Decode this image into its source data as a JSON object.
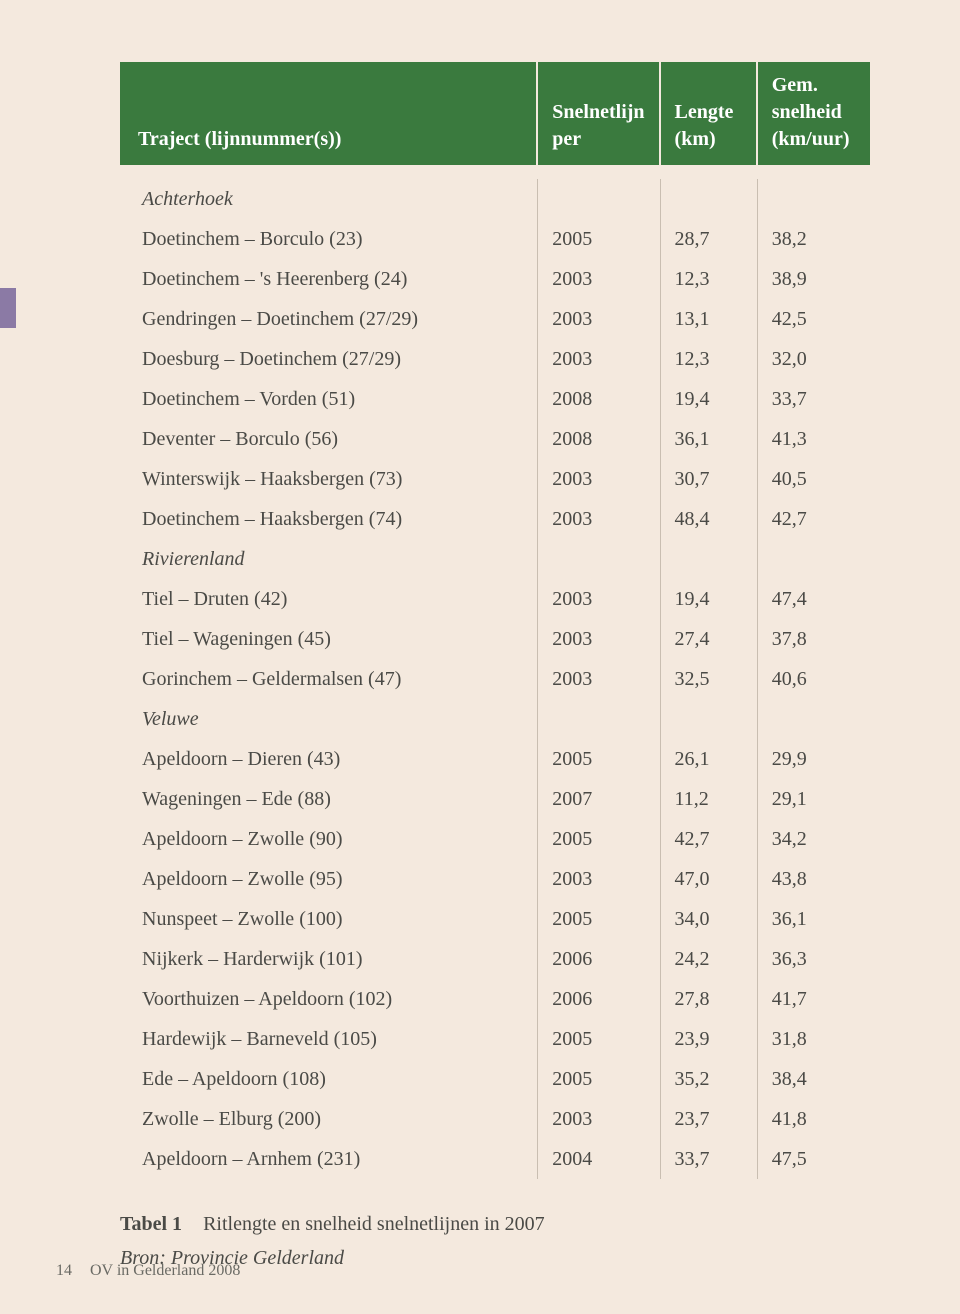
{
  "header": {
    "col1_line1": "",
    "col1_line2": "Traject (lijnnummer(s))",
    "col2_line1": "Snelnetlijn",
    "col2_line2": "per",
    "col3_line1": "Lengte",
    "col3_line2": "(km)",
    "col4_line1": "Gem.",
    "col4_line2": "snelheid",
    "col4_line3": "(km/uur)"
  },
  "sections": [
    {
      "title": "Achterhoek",
      "rows": [
        {
          "traject": "Doetinchem – Borculo (23)",
          "per": "2005",
          "lengte": "28,7",
          "snelheid": "38,2"
        },
        {
          "traject": "Doetinchem – 's Heerenberg (24)",
          "per": "2003",
          "lengte": "12,3",
          "snelheid": "38,9"
        },
        {
          "traject": "Gendringen – Doetinchem (27/29)",
          "per": "2003",
          "lengte": "13,1",
          "snelheid": "42,5"
        },
        {
          "traject": "Doesburg – Doetinchem (27/29)",
          "per": "2003",
          "lengte": "12,3",
          "snelheid": "32,0"
        },
        {
          "traject": "Doetinchem – Vorden (51)",
          "per": "2008",
          "lengte": "19,4",
          "snelheid": "33,7"
        },
        {
          "traject": "Deventer – Borculo (56)",
          "per": "2008",
          "lengte": "36,1",
          "snelheid": "41,3"
        },
        {
          "traject": "Winterswijk – Haaksbergen (73)",
          "per": "2003",
          "lengte": "30,7",
          "snelheid": "40,5"
        },
        {
          "traject": "Doetinchem – Haaksbergen (74)",
          "per": "2003",
          "lengte": "48,4",
          "snelheid": "42,7"
        }
      ]
    },
    {
      "title": "Rivierenland",
      "rows": [
        {
          "traject": "Tiel – Druten (42)",
          "per": "2003",
          "lengte": "19,4",
          "snelheid": "47,4"
        },
        {
          "traject": "Tiel – Wageningen (45)",
          "per": "2003",
          "lengte": "27,4",
          "snelheid": "37,8"
        },
        {
          "traject": "Gorinchem – Geldermalsen (47)",
          "per": "2003",
          "lengte": "32,5",
          "snelheid": "40,6"
        }
      ]
    },
    {
      "title": "Veluwe",
      "rows": [
        {
          "traject": "Apeldoorn – Dieren (43)",
          "per": "2005",
          "lengte": "26,1",
          "snelheid": "29,9"
        },
        {
          "traject": "Wageningen – Ede (88)",
          "per": "2007",
          "lengte": "11,2",
          "snelheid": "29,1"
        },
        {
          "traject": "Apeldoorn – Zwolle (90)",
          "per": "2005",
          "lengte": "42,7",
          "snelheid": "34,2"
        },
        {
          "traject": "Apeldoorn – Zwolle (95)",
          "per": "2003",
          "lengte": "47,0",
          "snelheid": "43,8"
        },
        {
          "traject": "Nunspeet – Zwolle (100)",
          "per": "2005",
          "lengte": "34,0",
          "snelheid": "36,1"
        },
        {
          "traject": "Nijkerk – Harderwijk (101)",
          "per": "2006",
          "lengte": "24,2",
          "snelheid": "36,3"
        },
        {
          "traject": "Voorthuizen – Apeldoorn (102)",
          "per": "2006",
          "lengte": "27,8",
          "snelheid": "41,7"
        },
        {
          "traject": "Hardewijk – Barneveld (105)",
          "per": "2005",
          "lengte": "23,9",
          "snelheid": "31,8"
        },
        {
          "traject": "Ede – Apeldoorn (108)",
          "per": "2005",
          "lengte": "35,2",
          "snelheid": "38,4"
        },
        {
          "traject": "Zwolle – Elburg (200)",
          "per": "2003",
          "lengte": "23,7",
          "snelheid": "41,8"
        },
        {
          "traject": "Apeldoorn – Arnhem (231)",
          "per": "2004",
          "lengte": "33,7",
          "snelheid": "47,5"
        }
      ]
    }
  ],
  "caption": {
    "label": "Tabel 1",
    "text": "Ritlengte en snelheid snelnetlijnen in 2007",
    "source": "Bron: Provincie Gelderland"
  },
  "footer": {
    "page": "14",
    "title": "OV in Gelderland 2008"
  },
  "colors": {
    "page_bg": "#f4e9de",
    "header_bg": "#3a7a3e",
    "header_text": "#ffffff",
    "body_text": "#4a4a46",
    "rule": "#c9beb1",
    "strip": "#8b7aa5"
  }
}
